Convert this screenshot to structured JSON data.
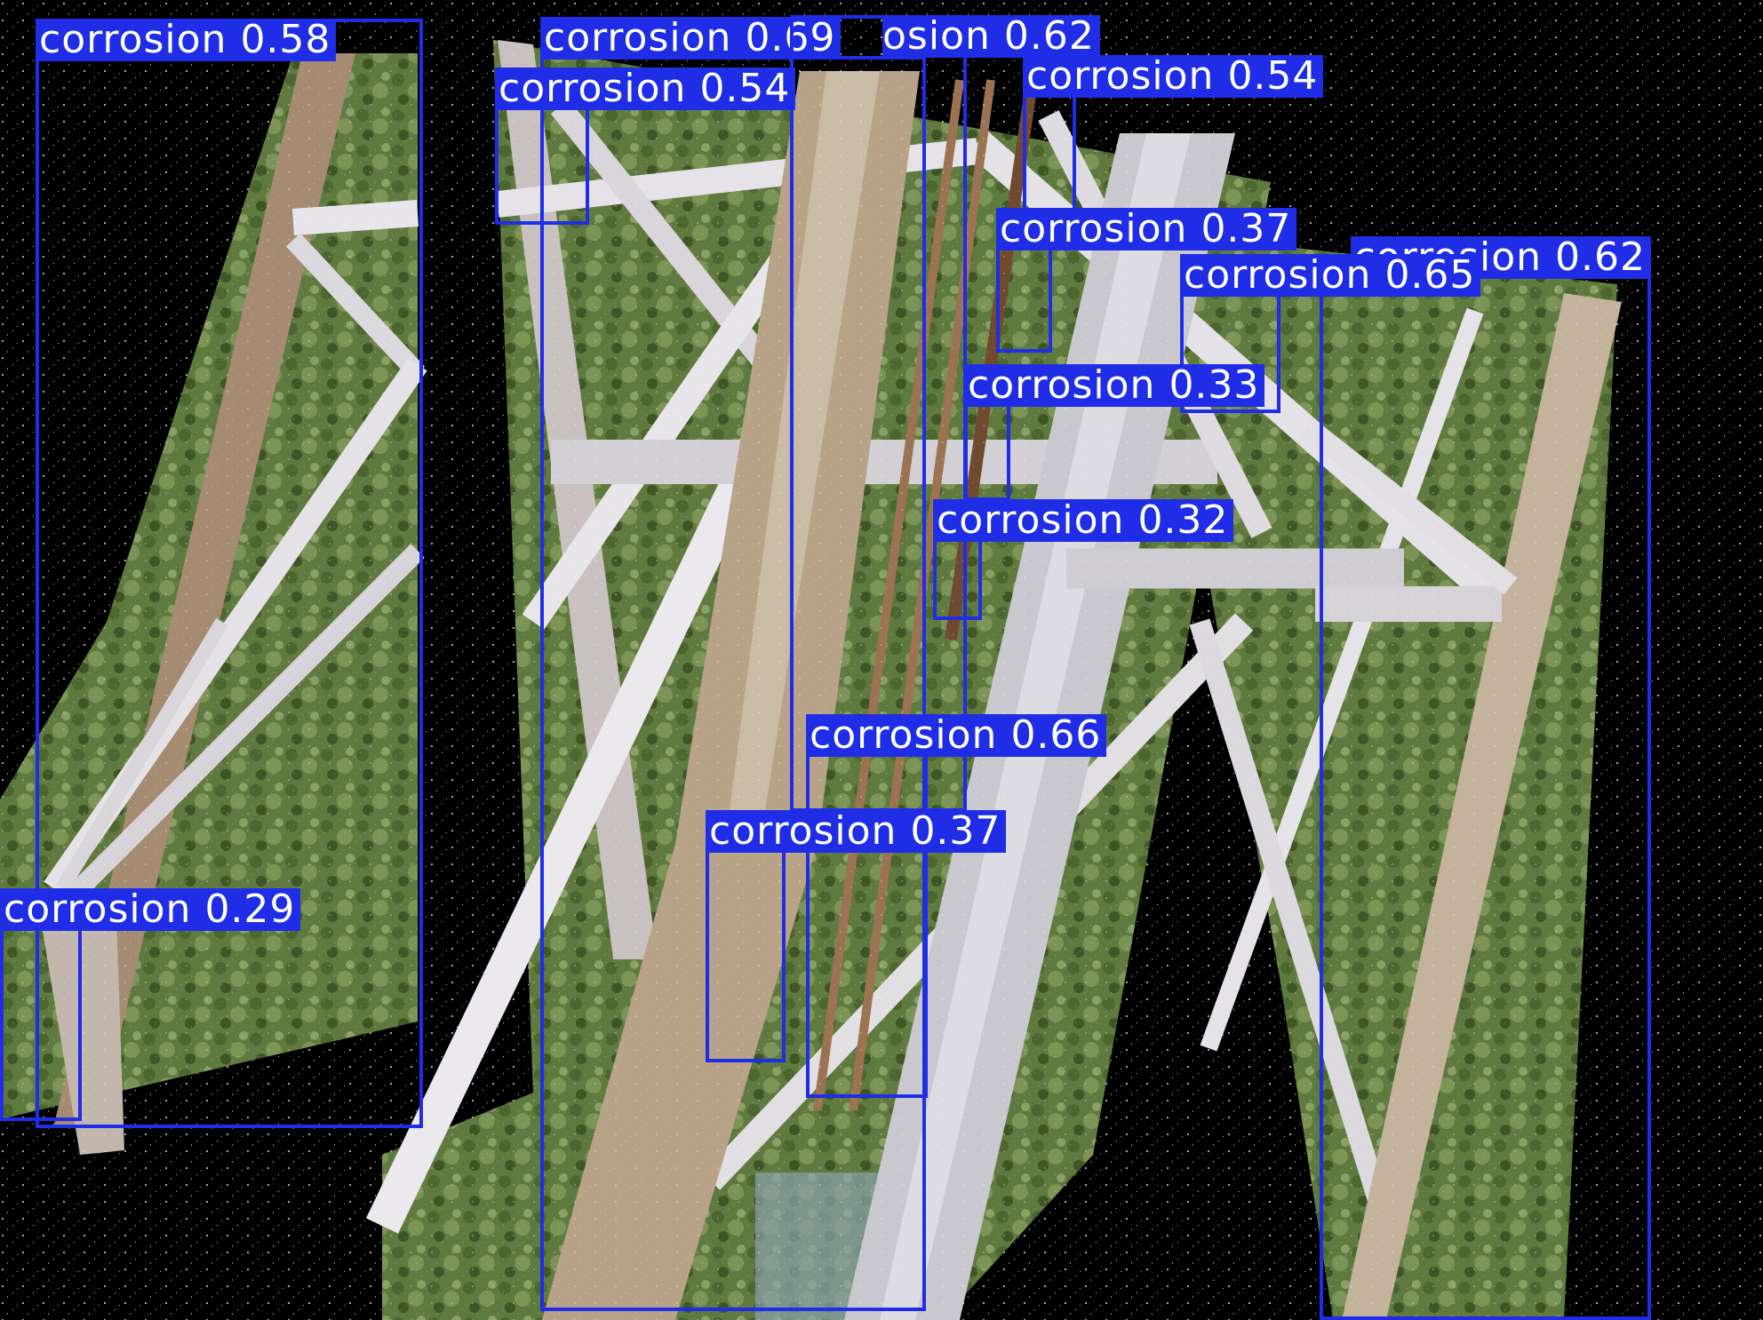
{
  "image": {
    "description_colors": {
      "background": "#000000",
      "box": "#1f2ee6",
      "label_text": "#ffffff"
    }
  },
  "detections": [
    {
      "label": "corrosion",
      "score": "0.58"
    },
    {
      "label": "corrosion",
      "score": "0.69"
    },
    {
      "label": "corrosion",
      "score": "0.54"
    },
    {
      "label": "corrosion",
      "score": "0.62"
    },
    {
      "label": "corrosion",
      "score": "0.54"
    },
    {
      "label": "corrosion",
      "score": "0.37"
    },
    {
      "label": "corrosion",
      "score": "0.62"
    },
    {
      "label": "corrosion",
      "score": "0.65"
    },
    {
      "label": "corrosion",
      "score": "0.33"
    },
    {
      "label": "corrosion",
      "score": "0.32"
    },
    {
      "label": "corrosion",
      "score": "0.66"
    },
    {
      "label": "corrosion",
      "score": "0.37"
    },
    {
      "label": "corrosion",
      "score": "0.29"
    }
  ]
}
